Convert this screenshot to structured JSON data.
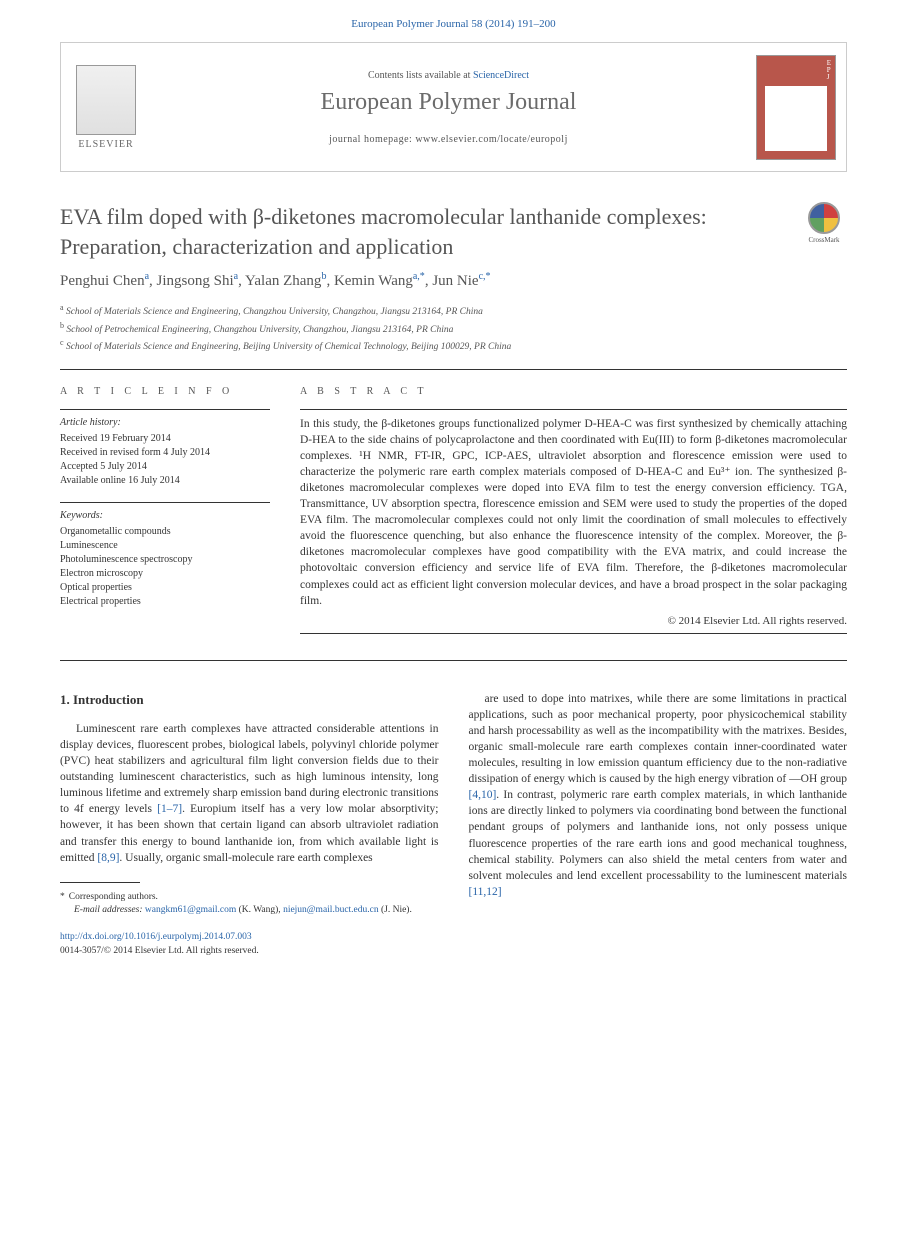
{
  "top_citation": "European Polymer Journal 58 (2014) 191–200",
  "header": {
    "contents_prefix": "Contents lists available at ",
    "contents_link": "ScienceDirect",
    "journal_name": "European Polymer Journal",
    "homepage": "journal homepage: www.elsevier.com/locate/europolj",
    "elsevier_label": "ELSEVIER",
    "cover_abbrev": "E\nP\nJ"
  },
  "title": "EVA film doped with β-diketones macromolecular lanthanide complexes: Preparation, characterization and application",
  "crossmark_label": "CrossMark",
  "authors_html": "Penghui Chen<sup>a</sup>, Jingsong Shi<sup>a</sup>, Yalan Zhang<sup>b</sup>, Kemin Wang<sup>a,*</sup>, Jun Nie<sup>c,*</sup>",
  "affiliations": [
    "a School of Materials Science and Engineering, Changzhou University, Changzhou, Jiangsu 213164, PR China",
    "b School of Petrochemical Engineering, Changzhou University, Changzhou, Jiangsu 213164, PR China",
    "c School of Materials Science and Engineering, Beijing University of Chemical Technology, Beijing 100029, PR China"
  ],
  "info": {
    "label": "A R T I C L E   I N F O",
    "history_heading": "Article history:",
    "history_lines": [
      "Received 19 February 2014",
      "Received in revised form 4 July 2014",
      "Accepted 5 July 2014",
      "Available online 16 July 2014"
    ],
    "keywords_heading": "Keywords:",
    "keywords": [
      "Organometallic compounds",
      "Luminescence",
      "Photoluminescence spectroscopy",
      "Electron microscopy",
      "Optical properties",
      "Electrical properties"
    ]
  },
  "abstract": {
    "label": "A B S T R A C T",
    "text": "In this study, the β-diketones groups functionalized polymer D-HEA-C was first synthesized by chemically attaching D-HEA to the side chains of polycaprolactone and then coordinated with Eu(III) to form β-diketones macromolecular complexes. ¹H NMR, FT-IR, GPC, ICP-AES, ultraviolet absorption and florescence emission were used to characterize the polymeric rare earth complex materials composed of D-HEA-C and Eu³⁺ ion. The synthesized β-diketones macromolecular complexes were doped into EVA film to test the energy conversion efficiency. TGA, Transmittance, UV absorption spectra, florescence emission and SEM were used to study the properties of the doped EVA film. The macromolecular complexes could not only limit the coordination of small molecules to effectively avoid the fluorescence quenching, but also enhance the fluorescence intensity of the complex. Moreover, the β-diketones macromolecular complexes have good compatibility with the EVA matrix, and could increase the photovoltaic conversion efficiency and service life of EVA film. Therefore, the β-diketones macromolecular complexes could act as efficient light conversion molecular devices, and have a broad prospect in the solar packaging film.",
    "copyright": "© 2014 Elsevier Ltd. All rights reserved."
  },
  "intro": {
    "heading": "1. Introduction",
    "left_text": "Luminescent rare earth complexes have attracted considerable attentions in display devices, fluorescent probes, biological labels, polyvinyl chloride polymer (PVC) heat stabilizers and agricultural film light conversion fields due to their outstanding luminescent characteristics, such as high luminous intensity, long luminous lifetime and extremely sharp emission band during electronic transitions to 4f energy levels ",
    "left_ref1": "[1–7]",
    "left_text2": ". Europium itself has a very low molar absorptivity; however, it has been shown that certain ligand can absorb ultraviolet radiation and transfer this energy to bound lanthanide ion, from which available light is emitted ",
    "left_ref2": "[8,9]",
    "left_text3": ". Usually, organic small-molecule rare earth complexes",
    "right_text": "are used to dope into matrixes, while there are some limitations in practical applications, such as poor mechanical property, poor physicochemical stability and harsh processability as well as the incompatibility with the matrixes. Besides, organic small-molecule rare earth complexes contain inner-coordinated water molecules, resulting in low emission quantum efficiency due to the non-radiative dissipation of energy which is caused by the high energy vibration of —OH group ",
    "right_ref1": "[4,10]",
    "right_text2": ". In contrast, polymeric rare earth complex materials, in which lanthanide ions are directly linked to polymers via coordinating bond between the functional pendant groups of polymers and lanthanide ions, not only possess unique fluorescence properties of the rare earth ions and good mechanical toughness, chemical stability. Polymers can also shield the metal centers from water and solvent molecules and lend excellent processability to the luminescent materials ",
    "right_ref2": "[11,12]"
  },
  "footnotes": {
    "corresponding": "Corresponding authors.",
    "email_label": "E-mail addresses:",
    "email1": "wangkm61@gmail.com",
    "email1_person": "(K. Wang),",
    "email2": "niejun@mail.buct.edu.cn",
    "email2_person": "(J. Nie)."
  },
  "footer": {
    "doi": "http://dx.doi.org/10.1016/j.eurpolymj.2014.07.003",
    "issn_line": "0014-3057/© 2014 Elsevier Ltd. All rights reserved."
  }
}
